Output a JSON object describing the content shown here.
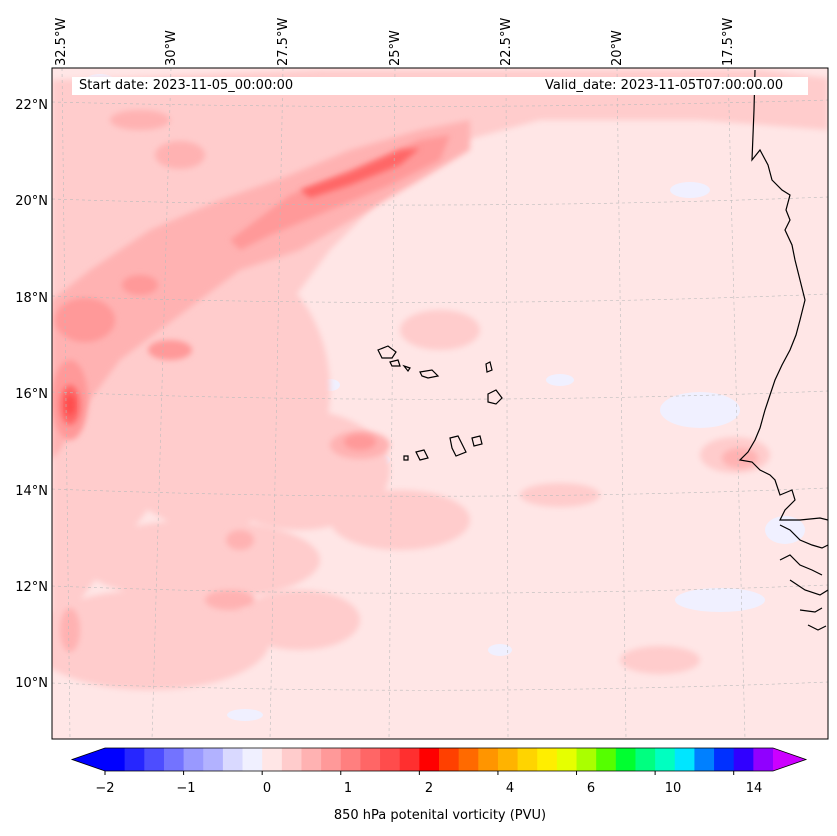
{
  "map": {
    "projection": "lat-lon",
    "extent": {
      "lon_min": -32.8,
      "lon_max": -15.6,
      "lat_min": 8.8,
      "lat_max": 22.8
    },
    "longitude_labels": [
      "32.5°W",
      "30°W",
      "27.5°W",
      "25°W",
      "22.5°W",
      "20°W",
      "17.5°W"
    ],
    "latitude_labels": [
      "22°N",
      "20°N",
      "18°N",
      "16°N",
      "14°N",
      "12°N",
      "10°N"
    ],
    "gridlines": true,
    "coastlines": true,
    "features": [
      "Cape Verde islands",
      "West African coast"
    ]
  },
  "header": {
    "start_date": "Start date: 2023-11-05_00:00:00",
    "valid_date": "Valid_date: 2023-11-05T07:00:00.00"
  },
  "field": {
    "variable": "850 hPa potential vorticity",
    "background_level": "0 to 0.25 PVU (light pink)",
    "max_region": "around 15.8°N 32.5°W, roughly 1 to 1.5 PVU",
    "band": "SW-NE band of 0.5–1 PVU from 16°N 32°W to 22°N 22°W"
  },
  "colorbar": {
    "title": "850 hPa potenital vorticity (PVU)",
    "tick_labels": [
      "−2",
      "−1",
      "0",
      "1",
      "2",
      "4",
      "6",
      "10",
      "14"
    ],
    "extend": "both",
    "colors": [
      "#0000ff",
      "#2626ff",
      "#4d4dff",
      "#7373ff",
      "#9999ff",
      "#b2b2ff",
      "#d9d9ff",
      "#f0f0ff",
      "#ffe6e6",
      "#ffcccc",
      "#ffb2b2",
      "#ff9999",
      "#ff7f7f",
      "#ff6666",
      "#ff4c4c",
      "#ff2f2f",
      "#ff0000",
      "#ff4000",
      "#ff6a00",
      "#ff9500",
      "#ffb300",
      "#ffd400",
      "#ffee00",
      "#e6ff00",
      "#aaff00",
      "#55ff00",
      "#00ff30",
      "#00ff80",
      "#00ffc0",
      "#00e6ff",
      "#0080ff",
      "#0030ff",
      "#3000ff",
      "#9000ff"
    ],
    "under_color": "#0000ff",
    "over_color": "#cc00ff"
  }
}
